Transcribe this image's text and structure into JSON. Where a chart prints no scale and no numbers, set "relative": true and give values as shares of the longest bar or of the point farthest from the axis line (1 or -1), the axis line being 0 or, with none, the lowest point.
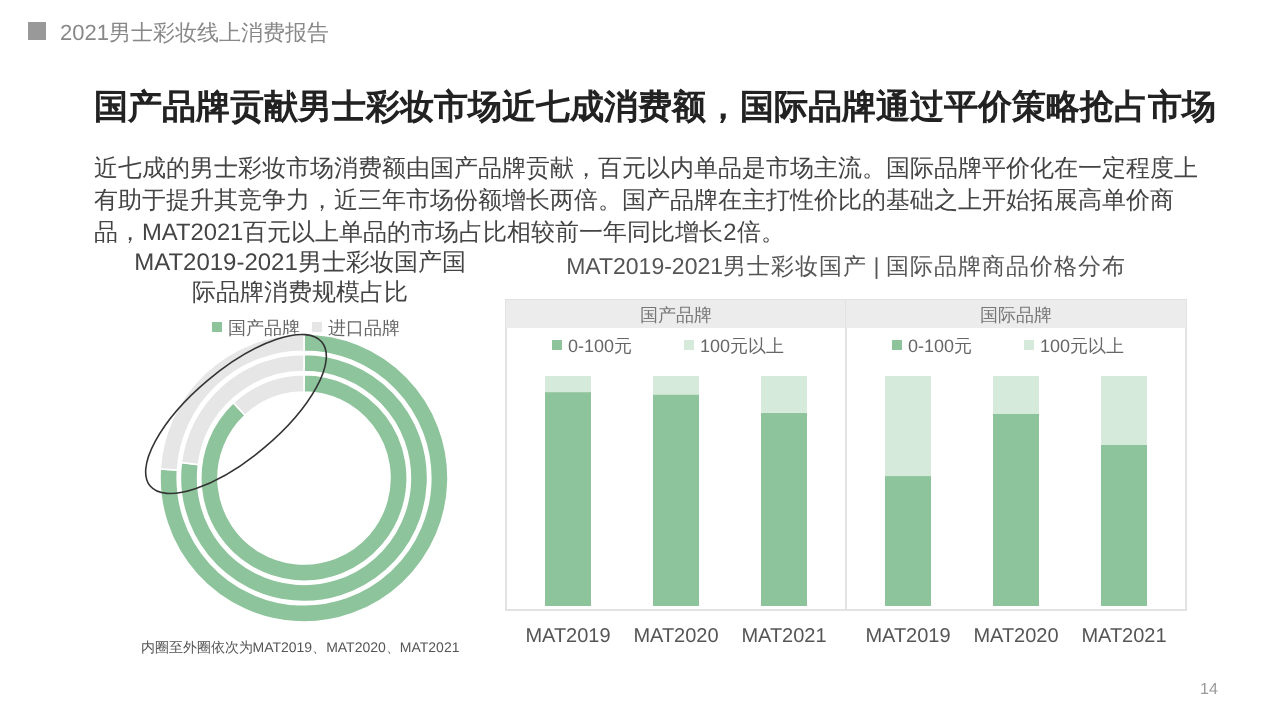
{
  "chart_data": [
    {
      "type": "donut",
      "title": "MAT2019-2021男士彩妆国产国际品牌消费规模占比",
      "categories": [
        "国产品牌",
        "进口品牌"
      ],
      "colors": [
        "#8dc49b",
        "#e6e6e6"
      ],
      "legend": "top",
      "series": [
        {
          "values": [
            88,
            12
          ]
        },
        {
          "values": [
            77,
            23
          ]
        },
        {
          "values": [
            76,
            24
          ]
        }
      ],
      "annotations": [
        "2021男士彩妆线上消费报告",
        "国产品牌贡献男士彩妆市场近七成消费额，国际品牌通过平价策略抢占市场",
        "近七成的男士彩妆市场消费额由国产品牌贡献，百元以内单品是市场主流。国际品牌平价化在一定程度上有助于提升其竞争力，近三年市场份额增长两倍。国产品牌在主打性价比的基础之上开始拓展高单价商品，MAT2021百元以上单品的市场占比相较前一年同比增长2倍。",
        "内圈至外圈依次为MAT2019、MAT2020、MAT2021",
        "14"
      ]
    },
    {
      "type": "bar",
      "title": "MAT2019-2021男士彩妆国产 | 国际品牌商品价格分布",
      "subtitle": "国产品牌",
      "categories": [
        "MAT2019",
        "MAT2020",
        "MAT2021"
      ],
      "stacked": true,
      "relative": true,
      "legend": "top",
      "series": [
        {
          "name": "0-100元",
          "color": "#8dc49b",
          "values": [
            0.93,
            0.92,
            0.84
          ]
        },
        {
          "name": "100元以上",
          "color": "#d5eadb",
          "values": [
            0.07,
            0.08,
            0.16
          ]
        }
      ]
    },
    {
      "type": "bar",
      "subtitle": "国际品牌",
      "categories": [
        "MAT2019",
        "MAT2020",
        "MAT2021"
      ],
      "stacked": true,
      "relative": true,
      "legend": "top",
      "series": [
        {
          "name": "0-100元",
          "color": "#8dc49b",
          "values": [
            0.565,
            0.835,
            0.7
          ]
        },
        {
          "name": "100元以上",
          "color": "#d5eadb",
          "values": [
            0.435,
            0.165,
            0.3
          ]
        }
      ]
    }
  ]
}
